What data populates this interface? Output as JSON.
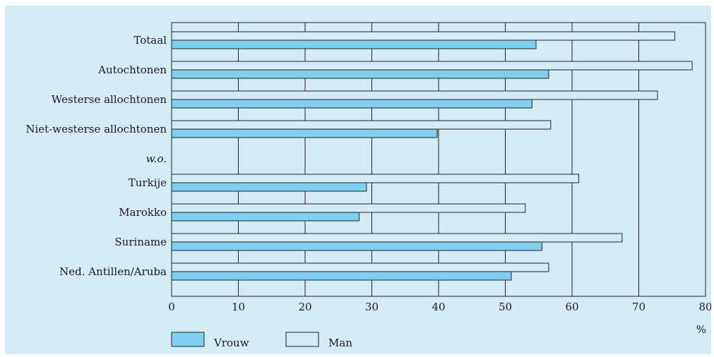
{
  "chart_data": {
    "type": "bar",
    "orientation": "horizontal",
    "categories": [
      "Totaal",
      "Autochtonen",
      "Westerse allochtonen",
      "Niet-westerse allochtonen",
      "w.o.",
      "Turkije",
      "Marokko",
      "Suriname",
      "Ned. Antillen/Aruba"
    ],
    "series": [
      {
        "name": "Man",
        "color": "#d4ecf8",
        "values": [
          75.4,
          78.0,
          72.8,
          56.8,
          null,
          61.0,
          53.0,
          67.5,
          56.5
        ]
      },
      {
        "name": "Vrouw",
        "color": "#7fd0f0",
        "values": [
          54.6,
          56.5,
          54.0,
          39.8,
          null,
          29.2,
          28.1,
          55.5,
          50.9
        ]
      }
    ],
    "xlim": [
      0,
      80
    ],
    "xticks": [
      "0",
      "10",
      "20",
      "30",
      "40",
      "50",
      "60",
      "70",
      "80"
    ],
    "xunit": "%",
    "grid": true,
    "legend_position": "bottom-left",
    "legend": [
      {
        "name": "Vrouw",
        "color": "#7fd0f0"
      },
      {
        "name": "Man",
        "color": "#d4ecf8"
      }
    ]
  }
}
